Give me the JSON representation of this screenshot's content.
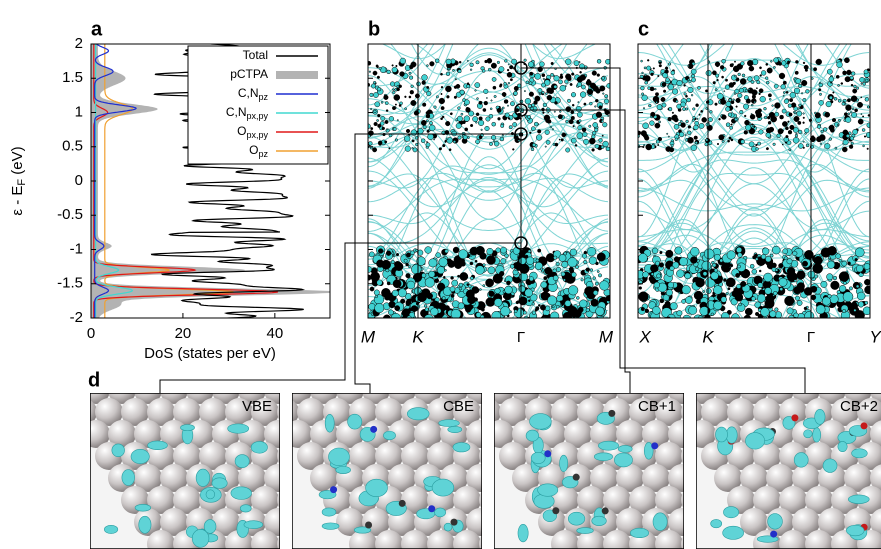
{
  "panels": {
    "a": {
      "letter": "a",
      "ylabel": {
        "main": "ε - E",
        "sub": "F",
        "unit": " (eV)"
      },
      "xlabel": "DoS (states per eV)",
      "ylim": [
        -2,
        2
      ],
      "yticks": [
        -2,
        -1.5,
        -1,
        -0.5,
        0,
        0.5,
        1,
        1.5,
        2
      ],
      "xlim": [
        0,
        52
      ],
      "xticks": [
        0,
        20,
        40
      ],
      "legend": [
        {
          "main": "Total",
          "sub": "",
          "color": "#000000"
        },
        {
          "main": "pCTPA",
          "sub": "",
          "color": "#b3b3b3"
        },
        {
          "main": "C,N",
          "sub": "pz",
          "color": "#1f2fd0"
        },
        {
          "main": "C,N",
          "sub": "px,py",
          "color": "#40d8d0"
        },
        {
          "main": "O",
          "sub": "px,py",
          "color": "#e01818"
        },
        {
          "main": "O",
          "sub": "pz",
          "color": "#f0a030"
        }
      ]
    },
    "b": {
      "letter": "b",
      "kpoints": [
        "M",
        "K",
        "Γ",
        "M"
      ]
    },
    "c": {
      "letter": "c",
      "kpoints": [
        "X",
        "K",
        "Γ",
        "Y"
      ]
    },
    "d": {
      "letter": "d",
      "images": [
        "VBE",
        "CBE",
        "CB+1",
        "CB+2"
      ]
    }
  }
}
